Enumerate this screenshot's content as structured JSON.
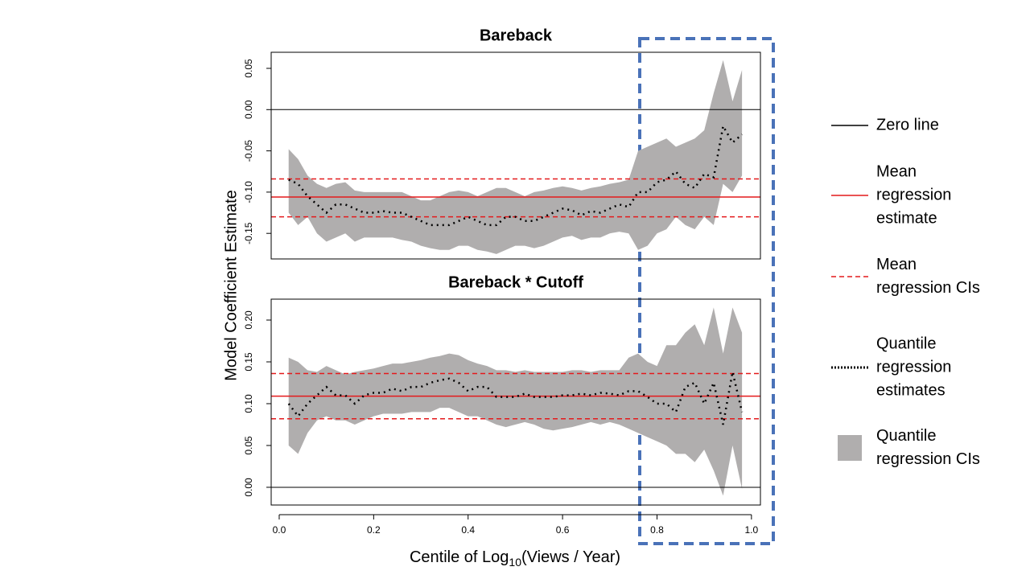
{
  "chart_data": [
    {
      "type": "line",
      "title": "Bareback",
      "x": [
        0.02,
        0.04,
        0.06,
        0.08,
        0.1,
        0.12,
        0.14,
        0.16,
        0.18,
        0.2,
        0.22,
        0.24,
        0.26,
        0.28,
        0.3,
        0.32,
        0.34,
        0.36,
        0.38,
        0.4,
        0.42,
        0.44,
        0.46,
        0.48,
        0.5,
        0.52,
        0.54,
        0.56,
        0.58,
        0.6,
        0.62,
        0.64,
        0.66,
        0.68,
        0.7,
        0.72,
        0.74,
        0.76,
        0.78,
        0.8,
        0.82,
        0.84,
        0.86,
        0.88,
        0.9,
        0.92,
        0.94,
        0.96,
        0.98
      ],
      "quantile_estimates": [
        -0.085,
        -0.09,
        -0.105,
        -0.115,
        -0.125,
        -0.115,
        -0.115,
        -0.12,
        -0.125,
        -0.125,
        -0.123,
        -0.125,
        -0.125,
        -0.13,
        -0.135,
        -0.14,
        -0.14,
        -0.14,
        -0.135,
        -0.13,
        -0.135,
        -0.14,
        -0.14,
        -0.13,
        -0.13,
        -0.135,
        -0.135,
        -0.13,
        -0.125,
        -0.12,
        -0.122,
        -0.128,
        -0.123,
        -0.125,
        -0.12,
        -0.115,
        -0.118,
        -0.1,
        -0.1,
        -0.088,
        -0.085,
        -0.075,
        -0.09,
        -0.095,
        -0.078,
        -0.082,
        -0.02,
        -0.04,
        -0.03
      ],
      "ci_upper": [
        -0.048,
        -0.06,
        -0.08,
        -0.09,
        -0.095,
        -0.09,
        -0.088,
        -0.098,
        -0.1,
        -0.1,
        -0.1,
        -0.1,
        -0.1,
        -0.105,
        -0.11,
        -0.11,
        -0.105,
        -0.1,
        -0.098,
        -0.1,
        -0.105,
        -0.1,
        -0.095,
        -0.095,
        -0.1,
        -0.105,
        -0.1,
        -0.098,
        -0.095,
        -0.093,
        -0.095,
        -0.098,
        -0.095,
        -0.093,
        -0.09,
        -0.088,
        -0.085,
        -0.05,
        -0.045,
        -0.04,
        -0.035,
        -0.045,
        -0.04,
        -0.035,
        -0.025,
        0.02,
        0.06,
        0.01,
        0.048
      ],
      "ci_lower": [
        -0.125,
        -0.14,
        -0.13,
        -0.15,
        -0.16,
        -0.155,
        -0.15,
        -0.16,
        -0.155,
        -0.155,
        -0.155,
        -0.155,
        -0.158,
        -0.16,
        -0.165,
        -0.168,
        -0.17,
        -0.17,
        -0.165,
        -0.165,
        -0.17,
        -0.172,
        -0.175,
        -0.17,
        -0.165,
        -0.165,
        -0.168,
        -0.165,
        -0.16,
        -0.155,
        -0.153,
        -0.158,
        -0.155,
        -0.155,
        -0.15,
        -0.148,
        -0.15,
        -0.17,
        -0.165,
        -0.15,
        -0.145,
        -0.13,
        -0.14,
        -0.145,
        -0.13,
        -0.14,
        -0.09,
        -0.1,
        -0.08
      ],
      "zero_line": 0,
      "mean_estimate": -0.106,
      "mean_ci": [
        -0.084,
        -0.13
      ],
      "xlim": [
        -0.017,
        1.019
      ],
      "ylim": [
        -0.181,
        0.0695
      ],
      "yticks": [
        0.05,
        {
          "value": 0,
          "label": "0.00"
        },
        -0.05,
        {
          "value": -0.1,
          "label": "-0.10"
        },
        -0.15
      ]
    },
    {
      "type": "line",
      "title": "Bareback * Cutoff",
      "x": [
        0.02,
        0.04,
        0.06,
        0.08,
        0.1,
        0.12,
        0.14,
        0.16,
        0.18,
        0.2,
        0.22,
        0.24,
        0.26,
        0.28,
        0.3,
        0.32,
        0.34,
        0.36,
        0.38,
        0.4,
        0.42,
        0.44,
        0.46,
        0.48,
        0.5,
        0.52,
        0.54,
        0.56,
        0.58,
        0.6,
        0.62,
        0.64,
        0.66,
        0.68,
        0.7,
        0.72,
        0.74,
        0.76,
        0.78,
        0.8,
        0.82,
        0.84,
        0.86,
        0.88,
        0.9,
        0.92,
        0.94,
        0.96,
        0.98
      ],
      "quantile_estimates": [
        0.1,
        0.085,
        0.1,
        0.11,
        0.12,
        0.11,
        0.11,
        0.1,
        0.11,
        0.113,
        0.113,
        0.118,
        0.115,
        0.12,
        0.12,
        0.125,
        0.128,
        0.13,
        0.125,
        0.115,
        0.12,
        0.12,
        0.108,
        0.108,
        0.108,
        0.112,
        0.108,
        0.108,
        0.108,
        0.11,
        0.11,
        0.112,
        0.11,
        0.113,
        0.112,
        0.11,
        0.115,
        0.115,
        0.108,
        0.1,
        0.1,
        0.09,
        0.12,
        0.125,
        0.1,
        0.125,
        0.075,
        0.138,
        0.09
      ],
      "ci_upper": [
        0.155,
        0.15,
        0.14,
        0.138,
        0.145,
        0.14,
        0.135,
        0.138,
        0.14,
        0.142,
        0.145,
        0.148,
        0.148,
        0.15,
        0.152,
        0.155,
        0.157,
        0.16,
        0.158,
        0.152,
        0.148,
        0.145,
        0.14,
        0.14,
        0.138,
        0.14,
        0.138,
        0.138,
        0.138,
        0.138,
        0.14,
        0.14,
        0.138,
        0.14,
        0.14,
        0.14,
        0.155,
        0.16,
        0.15,
        0.145,
        0.17,
        0.17,
        0.185,
        0.195,
        0.17,
        0.215,
        0.16,
        0.215,
        0.185
      ],
      "ci_lower": [
        0.05,
        0.04,
        0.065,
        0.08,
        0.085,
        0.08,
        0.08,
        0.075,
        0.08,
        0.085,
        0.088,
        0.088,
        0.088,
        0.09,
        0.09,
        0.09,
        0.095,
        0.095,
        0.09,
        0.085,
        0.085,
        0.08,
        0.075,
        0.072,
        0.075,
        0.078,
        0.075,
        0.07,
        0.068,
        0.07,
        0.072,
        0.075,
        0.078,
        0.075,
        0.078,
        0.075,
        0.07,
        0.065,
        0.06,
        0.055,
        0.05,
        0.04,
        0.04,
        0.03,
        0.045,
        0.02,
        -0.01,
        0.05,
        -0.002
      ],
      "zero_line": 0,
      "mean_estimate": 0.109,
      "mean_ci": [
        0.136,
        0.082
      ],
      "xlim": [
        -0.017,
        1.019
      ],
      "ylim": [
        -0.0212,
        0.225
      ],
      "yticks": [
        {
          "value": 0,
          "label": "0.00"
        },
        0.05,
        {
          "value": 0.1,
          "label": "0.10"
        },
        0.15,
        {
          "value": 0.2,
          "label": "0.20"
        }
      ],
      "xticks": [
        {
          "value": 0,
          "label": "0.0"
        },
        0.2,
        0.4,
        0.6,
        0.8,
        {
          "value": 1,
          "label": "1.0"
        }
      ]
    }
  ],
  "ylabel": "Model Coefficient Estimate",
  "xlabel": {
    "text": "Centile of Log",
    "subscript": "10",
    "rest": "(Views / Year)"
  },
  "legend": [
    {
      "lines": [
        "Zero line"
      ],
      "color": "#000000"
    },
    {
      "lines": [
        "Mean",
        "regression",
        "estimate"
      ],
      "color": "#e41a1c"
    },
    {
      "lines": [
        "Mean",
        "regression CIs"
      ],
      "color": "#e41a1c"
    },
    {
      "lines": [
        "Quantile",
        "regression",
        "estimates"
      ],
      "color": "#000000"
    },
    {
      "lines": [
        "Quantile",
        "regression CIs"
      ],
      "color": "#b0aeae"
    }
  ]
}
